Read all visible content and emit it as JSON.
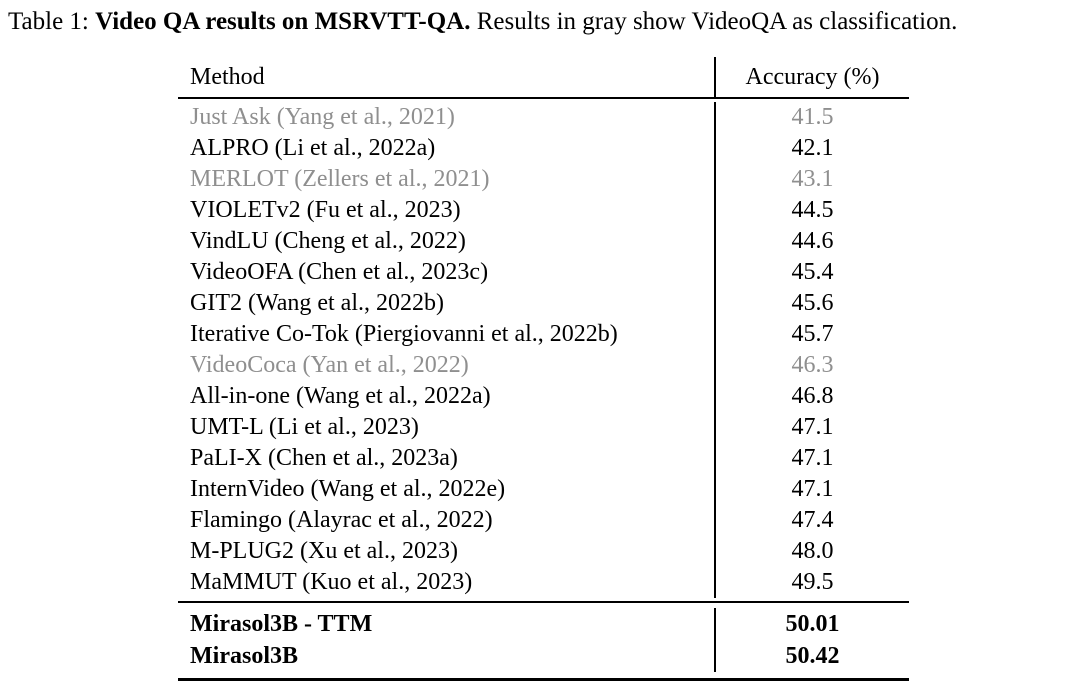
{
  "caption": {
    "prefix": "Table 1: ",
    "bold": "Video QA results on MSRVTT-QA.",
    "suffix": " Results in gray show VideoQA as classification."
  },
  "table": {
    "columns": [
      "Method",
      "Accuracy (%)"
    ],
    "rows": [
      {
        "method": "Just Ask (Yang et al., 2021)",
        "accuracy": "41.5",
        "gray": true
      },
      {
        "method": "ALPRO (Li et al., 2022a)",
        "accuracy": "42.1",
        "gray": false
      },
      {
        "method": "MERLOT (Zellers et al., 2021)",
        "accuracy": "43.1",
        "gray": true
      },
      {
        "method": "VIOLETv2 (Fu et al., 2023)",
        "accuracy": "44.5",
        "gray": false
      },
      {
        "method": "VindLU (Cheng et al., 2022)",
        "accuracy": "44.6",
        "gray": false
      },
      {
        "method": "VideoOFA (Chen et al., 2023c)",
        "accuracy": "45.4",
        "gray": false
      },
      {
        "method": "GIT2 (Wang et al., 2022b)",
        "accuracy": "45.6",
        "gray": false
      },
      {
        "method": "Iterative Co-Tok (Piergiovanni et al., 2022b)",
        "accuracy": "45.7",
        "gray": false
      },
      {
        "method": "VideoCoca (Yan et al., 2022)",
        "accuracy": "46.3",
        "gray": true
      },
      {
        "method": "All-in-one (Wang et al., 2022a)",
        "accuracy": "46.8",
        "gray": false
      },
      {
        "method": "UMT-L (Li et al., 2023)",
        "accuracy": "47.1",
        "gray": false
      },
      {
        "method": "PaLI-X (Chen et al., 2023a)",
        "accuracy": "47.1",
        "gray": false
      },
      {
        "method": "InternVideo (Wang et al., 2022e)",
        "accuracy": "47.1",
        "gray": false
      },
      {
        "method": "Flamingo (Alayrac et al., 2022)",
        "accuracy": "47.4",
        "gray": false
      },
      {
        "method": "M-PLUG2 (Xu et al., 2023)",
        "accuracy": "48.0",
        "gray": false
      },
      {
        "method": "MaMMUT (Kuo et al., 2023)",
        "accuracy": "49.5",
        "gray": false
      }
    ],
    "highlight_rows": [
      {
        "method": "Mirasol3B - TTM",
        "accuracy": "50.01"
      },
      {
        "method": "Mirasol3B",
        "accuracy": "50.42"
      }
    ]
  },
  "colors": {
    "text": "#000000",
    "gray_text": "#8f8f8f",
    "rule": "#000000"
  }
}
